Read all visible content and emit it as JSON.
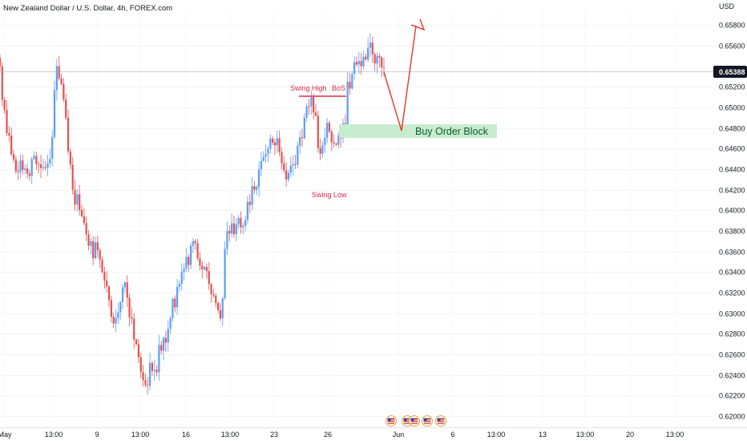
{
  "header": {
    "title": "New Zealand Dollar / U.S. Dollar, 4h, FOREX.com"
  },
  "price_axis": {
    "currency": "USD",
    "current_price": "0.65388",
    "ticks": [
      "0.62000",
      "0.62200",
      "0.62400",
      "0.62600",
      "0.62800",
      "0.63000",
      "0.63200",
      "0.63400",
      "0.63600",
      "0.63800",
      "0.64000",
      "0.64200",
      "0.64400",
      "0.64600",
      "0.64800",
      "0.65000",
      "0.65200",
      "0.65600",
      "0.65800"
    ]
  },
  "time_axis": {
    "ticks": [
      "May",
      "13:00",
      "9",
      "13:00",
      "16",
      "13:00",
      "23",
      "26",
      "Jun",
      "6",
      "13:00",
      "13",
      "13:00",
      "20",
      "13:00"
    ]
  },
  "annotations": {
    "swing_high": "Swing High",
    "bos": "BoS",
    "swing_low": "Swing Low",
    "order_block": "Buy Order Block"
  },
  "colors": {
    "up": "#5b9cf6",
    "down": "#e25050",
    "accent_red": "#e0294a",
    "zone_fill": "#c8ecd0",
    "zone_text": "#0b5e2c",
    "price_tag": "#131722"
  },
  "event_icons": [
    "us-flag-icon",
    "us-flag-icon",
    "us-flag-icon",
    "us-flag-icon",
    "us-flag-icon"
  ],
  "chart_data": {
    "type": "candlestick",
    "symbol": "NZDUSD",
    "timeframe": "4h",
    "ylim": [
      0.6193,
      0.6595
    ],
    "last_price": 0.65388,
    "anchors": [
      [
        0,
        0.654
      ],
      [
        3,
        0.6475
      ],
      [
        8,
        0.6437
      ],
      [
        16,
        0.6445
      ],
      [
        22,
        0.645
      ],
      [
        25,
        0.654
      ],
      [
        29,
        0.649
      ],
      [
        32,
        0.642
      ],
      [
        40,
        0.637
      ],
      [
        45,
        0.634
      ],
      [
        50,
        0.629
      ],
      [
        55,
        0.633
      ],
      [
        60,
        0.627
      ],
      [
        63,
        0.6235
      ],
      [
        68,
        0.6245
      ],
      [
        74,
        0.6285
      ],
      [
        80,
        0.634
      ],
      [
        86,
        0.6368
      ],
      [
        90,
        0.6345
      ],
      [
        95,
        0.631
      ],
      [
        97,
        0.6295
      ],
      [
        100,
        0.638
      ],
      [
        107,
        0.6385
      ],
      [
        112,
        0.642
      ],
      [
        118,
        0.646
      ],
      [
        122,
        0.647
      ],
      [
        126,
        0.643
      ],
      [
        129,
        0.6445
      ],
      [
        134,
        0.649
      ],
      [
        137,
        0.651
      ],
      [
        141,
        0.6455
      ],
      [
        144,
        0.6485
      ],
      [
        147,
        0.6465
      ],
      [
        150,
        0.647
      ],
      [
        152,
        0.648
      ],
      [
        153,
        0.6525
      ],
      [
        158,
        0.6545
      ],
      [
        162,
        0.6558
      ],
      [
        166,
        0.655
      ],
      [
        169,
        0.6539
      ]
    ],
    "structure": {
      "swing_high": 0.6515,
      "swing_low": 0.6425,
      "order_block": [
        0.6473,
        0.6488
      ],
      "projection": [
        [
          0.6538,
          0.648
        ],
        [
          0.648,
          0.659
        ]
      ]
    }
  }
}
